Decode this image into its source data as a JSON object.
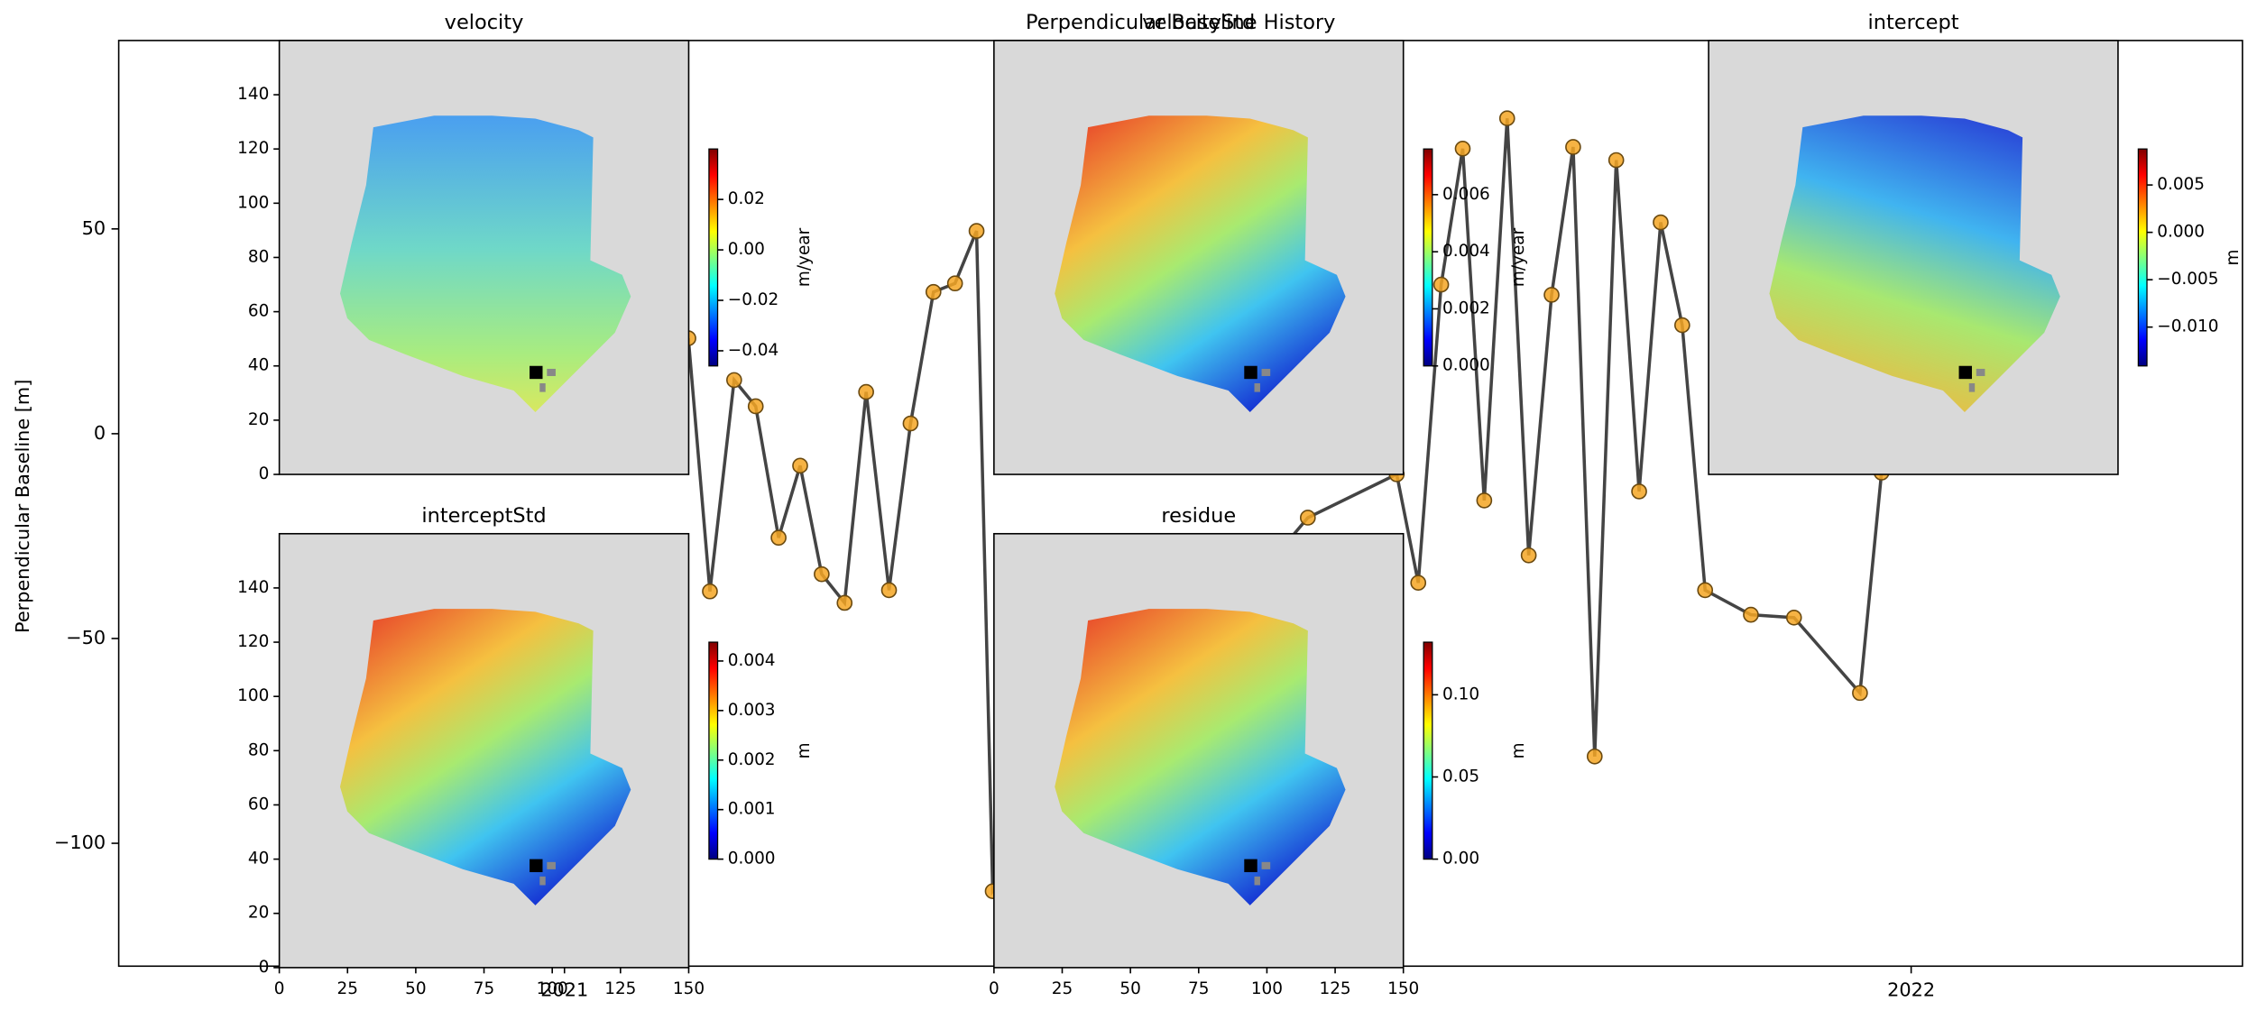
{
  "chart_data": [
    {
      "type": "line",
      "title": "Perpendicular Baseline History",
      "y_label": "Perpendicular Baseline [m]",
      "x": [
        2021.092,
        2021.108,
        2021.126,
        2021.142,
        2021.159,
        2021.175,
        2021.191,
        2021.208,
        2021.224,
        2021.241,
        2021.257,
        2021.274,
        2021.29,
        2021.306,
        2021.318,
        2021.552,
        2021.618,
        2021.634,
        2021.651,
        2021.667,
        2021.683,
        2021.7,
        2021.716,
        2021.733,
        2021.749,
        2021.765,
        2021.781,
        2021.798,
        2021.814,
        2021.83,
        2021.847,
        2021.881,
        2021.913,
        2021.962,
        2021.978
      ],
      "series": [
        {
          "color": "#f5a623",
          "line_color": "#444444",
          "values": [
            23.3,
            -38.5,
            13.1,
            6.7,
            -25.4,
            -7.8,
            -34.3,
            -41.3,
            10.2,
            -38.2,
            2.5,
            34.6,
            36.7,
            49.5,
            -111.7,
            -20.5,
            -9.9,
            -36.4,
            36.4,
            69.6,
            -16.3,
            77.0,
            -29.7,
            33.9,
            70.0,
            -78.8,
            66.8,
            -14.1,
            51.6,
            26.5,
            -38.2,
            -44.2,
            -44.9,
            -63.3,
            -9.5
          ]
        }
      ],
      "xlim": [
        2020.669,
        2022.246
      ],
      "xticks": [
        2021,
        2022
      ],
      "ylim": [
        -130,
        96
      ],
      "yticks": [
        {
          "value": -100,
          "label": "−100"
        },
        {
          "value": -50,
          "label": "−50"
        },
        0,
        50
      ]
    },
    {
      "type": "image",
      "title": "velocity",
      "colormap": "jet",
      "cbar_label": "m/year",
      "xlim": [
        0,
        150
      ],
      "ylim": [
        0,
        160
      ],
      "yticks": [
        0,
        20,
        40,
        60,
        80,
        100,
        120,
        140
      ],
      "clim": [
        -0.046,
        0.04
      ],
      "cticks": [
        {
          "value": -0.04,
          "label": "−0.04"
        },
        {
          "value": -0.02,
          "label": "−0.02"
        },
        {
          "value": 0,
          "label": "0.00"
        },
        0.02
      ]
    },
    {
      "type": "image",
      "title": "velocityStd",
      "colormap": "jet",
      "cbar_label": "m/year",
      "xlim": [
        0,
        150
      ],
      "ylim": [
        0,
        160
      ],
      "clim": [
        0,
        0.0076
      ],
      "cticks": [
        {
          "value": 0,
          "label": "0.000"
        },
        0.002,
        0.004,
        0.006
      ]
    },
    {
      "type": "image",
      "title": "intercept",
      "colormap": "jet",
      "cbar_label": "m",
      "xlim": [
        0,
        150
      ],
      "ylim": [
        0,
        160
      ],
      "clim": [
        -0.0141,
        0.0088
      ],
      "cticks": [
        {
          "value": -0.01,
          "label": "−0.010"
        },
        {
          "value": -0.005,
          "label": "−0.005"
        },
        {
          "value": 0,
          "label": "0.000"
        },
        0.005
      ]
    },
    {
      "type": "image",
      "title": "interceptStd",
      "colormap": "jet",
      "cbar_label": "m",
      "xlim": [
        0,
        150
      ],
      "ylim": [
        0,
        160
      ],
      "xticks": [
        0,
        25,
        50,
        75,
        100,
        125,
        150
      ],
      "yticks": [
        0,
        20,
        40,
        60,
        80,
        100,
        120,
        140
      ],
      "clim": [
        0,
        0.00438
      ],
      "cticks": [
        {
          "value": 0,
          "label": "0.000"
        },
        0.001,
        0.002,
        0.003,
        0.004
      ]
    },
    {
      "type": "image",
      "title": "residue",
      "colormap": "jet",
      "cbar_label": "m",
      "xlim": [
        0,
        150
      ],
      "ylim": [
        0,
        160
      ],
      "xticks": [
        0,
        25,
        50,
        75,
        100,
        125,
        150
      ],
      "clim": [
        0,
        0.132
      ],
      "cticks": [
        {
          "value": 0,
          "label": "0.00"
        },
        0.05,
        {
          "value": 0.1,
          "label": "0.10"
        }
      ]
    }
  ]
}
